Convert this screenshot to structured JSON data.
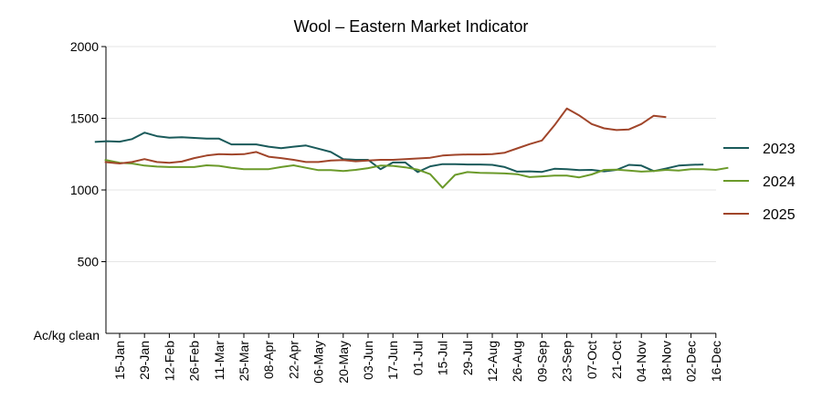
{
  "chart_data": {
    "type": "line",
    "title": "Wool – Eastern Market Indicator",
    "ylabel": "Ac/kg clean",
    "xlabel": "",
    "ylim": [
      0,
      2000
    ],
    "yticks": [
      500,
      1000,
      1500,
      2000
    ],
    "grid": "horizontal",
    "legend_position": "right",
    "x": [
      "15-Jan",
      "29-Jan",
      "12-Feb",
      "26-Feb",
      "11-Mar",
      "25-Mar",
      "08-Apr",
      "22-Apr",
      "06-May",
      "20-May",
      "03-Jun",
      "17-Jun",
      "01-Jul",
      "15-Jul",
      "29-Jul",
      "12-Aug",
      "26-Aug",
      "09-Sep",
      "23-Sep",
      "07-Oct",
      "21-Oct",
      "04-Nov",
      "18-Nov",
      "02-Dec",
      "16-Dec"
    ],
    "series": [
      {
        "name": "2023",
        "color": "#1a5a5a",
        "points": [
          [
            -1.0,
            1335
          ],
          [
            -0.5,
            1340
          ],
          [
            0.0,
            1337
          ],
          [
            0.5,
            1355
          ],
          [
            1.0,
            1400
          ],
          [
            1.5,
            1375
          ],
          [
            2.0,
            1365
          ],
          [
            2.5,
            1368
          ],
          [
            3.0,
            1363
          ],
          [
            3.5,
            1358
          ],
          [
            4.0,
            1358
          ],
          [
            4.5,
            1318
          ],
          [
            5.0,
            1318
          ],
          [
            5.5,
            1318
          ],
          [
            6.0,
            1302
          ],
          [
            6.5,
            1292
          ],
          [
            7.0,
            1302
          ],
          [
            7.5,
            1310
          ],
          [
            8.0,
            1288
          ],
          [
            8.5,
            1265
          ],
          [
            9.0,
            1215
          ],
          [
            9.5,
            1210
          ],
          [
            10.0,
            1210
          ],
          [
            10.5,
            1145
          ],
          [
            11.0,
            1192
          ],
          [
            11.5,
            1192
          ],
          [
            12.0,
            1125
          ],
          [
            12.5,
            1165
          ],
          [
            13.0,
            1180
          ],
          [
            13.5,
            1180
          ],
          [
            14.0,
            1178
          ],
          [
            14.5,
            1178
          ],
          [
            15.0,
            1175
          ],
          [
            15.5,
            1160
          ],
          [
            16.0,
            1128
          ],
          [
            16.5,
            1130
          ],
          [
            17.0,
            1126
          ],
          [
            17.5,
            1148
          ],
          [
            18.0,
            1145
          ],
          [
            18.5,
            1138
          ],
          [
            19.0,
            1140
          ],
          [
            19.5,
            1130
          ],
          [
            20.0,
            1140
          ],
          [
            20.5,
            1175
          ],
          [
            21.0,
            1170
          ],
          [
            21.5,
            1132
          ],
          [
            22.0,
            1150
          ],
          [
            22.5,
            1170
          ],
          [
            23.0,
            1175
          ],
          [
            23.5,
            1178
          ]
        ]
      },
      {
        "name": "2024",
        "color": "#6b9a2a",
        "points": [
          [
            -0.6,
            1210
          ],
          [
            0.0,
            1190
          ],
          [
            0.5,
            1185
          ],
          [
            1.0,
            1170
          ],
          [
            1.5,
            1163
          ],
          [
            2.0,
            1160
          ],
          [
            2.5,
            1160
          ],
          [
            3.0,
            1160
          ],
          [
            3.5,
            1172
          ],
          [
            4.0,
            1168
          ],
          [
            4.5,
            1155
          ],
          [
            5.0,
            1145
          ],
          [
            5.5,
            1145
          ],
          [
            6.0,
            1145
          ],
          [
            6.5,
            1160
          ],
          [
            7.0,
            1172
          ],
          [
            7.5,
            1155
          ],
          [
            8.0,
            1138
          ],
          [
            8.5,
            1138
          ],
          [
            9.0,
            1132
          ],
          [
            9.5,
            1140
          ],
          [
            10.0,
            1152
          ],
          [
            10.5,
            1170
          ],
          [
            11.0,
            1168
          ],
          [
            11.5,
            1158
          ],
          [
            12.0,
            1142
          ],
          [
            12.5,
            1110
          ],
          [
            13.0,
            1015
          ],
          [
            13.5,
            1105
          ],
          [
            14.0,
            1125
          ],
          [
            14.5,
            1120
          ],
          [
            15.0,
            1118
          ],
          [
            15.5,
            1115
          ],
          [
            16.0,
            1110
          ],
          [
            16.5,
            1090
          ],
          [
            17.0,
            1095
          ],
          [
            17.5,
            1100
          ],
          [
            18.0,
            1100
          ],
          [
            18.5,
            1088
          ],
          [
            19.0,
            1108
          ],
          [
            19.5,
            1140
          ],
          [
            20.0,
            1142
          ],
          [
            20.5,
            1135
          ],
          [
            21.0,
            1128
          ],
          [
            21.5,
            1132
          ],
          [
            22.0,
            1140
          ],
          [
            22.5,
            1135
          ],
          [
            23.0,
            1145
          ],
          [
            23.5,
            1145
          ],
          [
            24.0,
            1140
          ],
          [
            24.5,
            1155
          ]
        ]
      },
      {
        "name": "2025",
        "color": "#a0452a",
        "points": [
          [
            -0.6,
            1195
          ],
          [
            0.0,
            1185
          ],
          [
            0.5,
            1195
          ],
          [
            1.0,
            1215
          ],
          [
            1.5,
            1195
          ],
          [
            2.0,
            1190
          ],
          [
            2.5,
            1198
          ],
          [
            3.0,
            1222
          ],
          [
            3.5,
            1240
          ],
          [
            4.0,
            1250
          ],
          [
            4.5,
            1248
          ],
          [
            5.0,
            1250
          ],
          [
            5.5,
            1265
          ],
          [
            6.0,
            1232
          ],
          [
            6.5,
            1222
          ],
          [
            7.0,
            1210
          ],
          [
            7.5,
            1195
          ],
          [
            8.0,
            1195
          ],
          [
            8.5,
            1205
          ],
          [
            9.0,
            1208
          ],
          [
            9.5,
            1200
          ],
          [
            10.0,
            1205
          ],
          [
            10.5,
            1210
          ],
          [
            11.0,
            1210
          ],
          [
            11.5,
            1215
          ],
          [
            12.0,
            1220
          ],
          [
            12.5,
            1225
          ],
          [
            13.0,
            1240
          ],
          [
            13.5,
            1245
          ],
          [
            14.0,
            1248
          ],
          [
            14.5,
            1248
          ],
          [
            15.0,
            1250
          ],
          [
            15.5,
            1260
          ],
          [
            16.0,
            1290
          ],
          [
            16.5,
            1320
          ],
          [
            17.0,
            1345
          ],
          [
            17.5,
            1450
          ],
          [
            18.0,
            1568
          ],
          [
            18.5,
            1520
          ],
          [
            19.0,
            1460
          ],
          [
            19.5,
            1430
          ],
          [
            20.0,
            1418
          ],
          [
            20.5,
            1422
          ],
          [
            21.0,
            1460
          ],
          [
            21.5,
            1518
          ],
          [
            22.0,
            1508
          ]
        ]
      }
    ]
  }
}
